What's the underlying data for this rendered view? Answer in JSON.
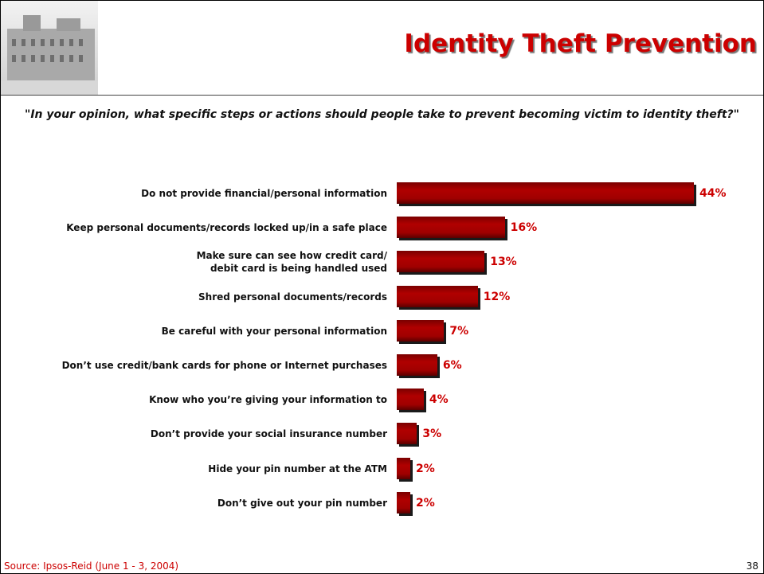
{
  "title": "Identity Theft Prevention",
  "question": "\"In your opinion, what specific steps or actions should people take to prevent becoming victim to identity theft?\"",
  "source": "Source: Ipsos-Reid (June 1 - 3, 2004)",
  "page_number": "38",
  "chart_data": {
    "type": "bar",
    "orientation": "horizontal",
    "color": "#b00000",
    "categories": [
      "Do not provide financial/personal information",
      "Keep personal documents/records locked up/in a safe place",
      "Make sure can see how credit card/\ndebit card is being handled used",
      "Shred personal documents/records",
      "Be careful with your personal information",
      "Don’t use credit/bank cards for phone or Internet purchases",
      "Know who you’re giving your information to",
      "Don’t provide your social insurance number",
      "Hide your pin number at the ATM",
      "Don’t give out your pin number"
    ],
    "values": [
      44,
      16,
      13,
      12,
      7,
      6,
      4,
      3,
      2,
      2
    ],
    "value_labels": [
      "44%",
      "16%",
      "13%",
      "12%",
      "7%",
      "6%",
      "4%",
      "3%",
      "2%",
      "2%"
    ]
  }
}
